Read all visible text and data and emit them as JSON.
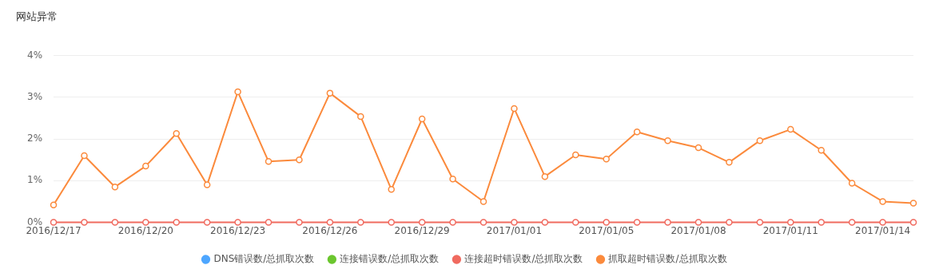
{
  "chart_data": {
    "type": "line",
    "title": "网站异常",
    "categories": [
      "2016/12/17",
      null,
      null,
      "2016/12/20",
      null,
      null,
      "2016/12/23",
      null,
      null,
      "2016/12/26",
      null,
      null,
      "2016/12/29",
      null,
      null,
      "2017/01/01",
      null,
      null,
      "2017/01/05",
      null,
      null,
      "2017/01/08",
      null,
      null,
      "2017/01/11",
      null,
      null,
      "2017/01/14",
      null
    ],
    "series": [
      {
        "name": "DNS错误数/总抓取次数",
        "color": "#4da6ff",
        "values": [
          null,
          null,
          null,
          null,
          null,
          null,
          null,
          null,
          null,
          null,
          null,
          null,
          null,
          null,
          null,
          null,
          null,
          null,
          null,
          null,
          null,
          null,
          null,
          null,
          null,
          null,
          null,
          null,
          null
        ]
      },
      {
        "name": "连接错误数/总抓取次数",
        "color": "#6bc62e",
        "values": [
          null,
          null,
          null,
          null,
          null,
          null,
          null,
          null,
          null,
          null,
          null,
          null,
          null,
          null,
          null,
          null,
          null,
          null,
          null,
          null,
          null,
          null,
          null,
          null,
          null,
          null,
          null,
          null,
          null
        ]
      },
      {
        "name": "连接超时错误数/总抓取次数",
        "color": "#f06a5f",
        "values": [
          0,
          0,
          0,
          0,
          0,
          0,
          0,
          0,
          0,
          0,
          0,
          0,
          0,
          0,
          0,
          0,
          0,
          0,
          0,
          0,
          0,
          0,
          0,
          0,
          0,
          0,
          0,
          0,
          0
        ]
      },
      {
        "name": "抓取超时错误数/总抓取次数",
        "color": "#fb8a3c",
        "values": [
          0.42,
          1.6,
          0.85,
          1.35,
          2.13,
          0.9,
          3.13,
          1.46,
          1.5,
          3.1,
          2.54,
          0.79,
          2.48,
          1.04,
          0.5,
          2.73,
          1.1,
          1.62,
          1.52,
          2.17,
          1.96,
          1.79,
          1.44,
          1.96,
          2.23,
          1.73,
          0.94,
          0.5,
          0.46
        ]
      }
    ],
    "ylim": [
      0,
      4
    ],
    "yticks": [
      {
        "value": 0,
        "label": "0%"
      },
      {
        "value": 1,
        "label": "1%"
      },
      {
        "value": 2,
        "label": "2%"
      },
      {
        "value": 3,
        "label": "3%"
      },
      {
        "value": 4,
        "label": "4%"
      }
    ],
    "grid": "y",
    "legend": "bottom",
    "marker": "circle",
    "line_style": "solid"
  }
}
